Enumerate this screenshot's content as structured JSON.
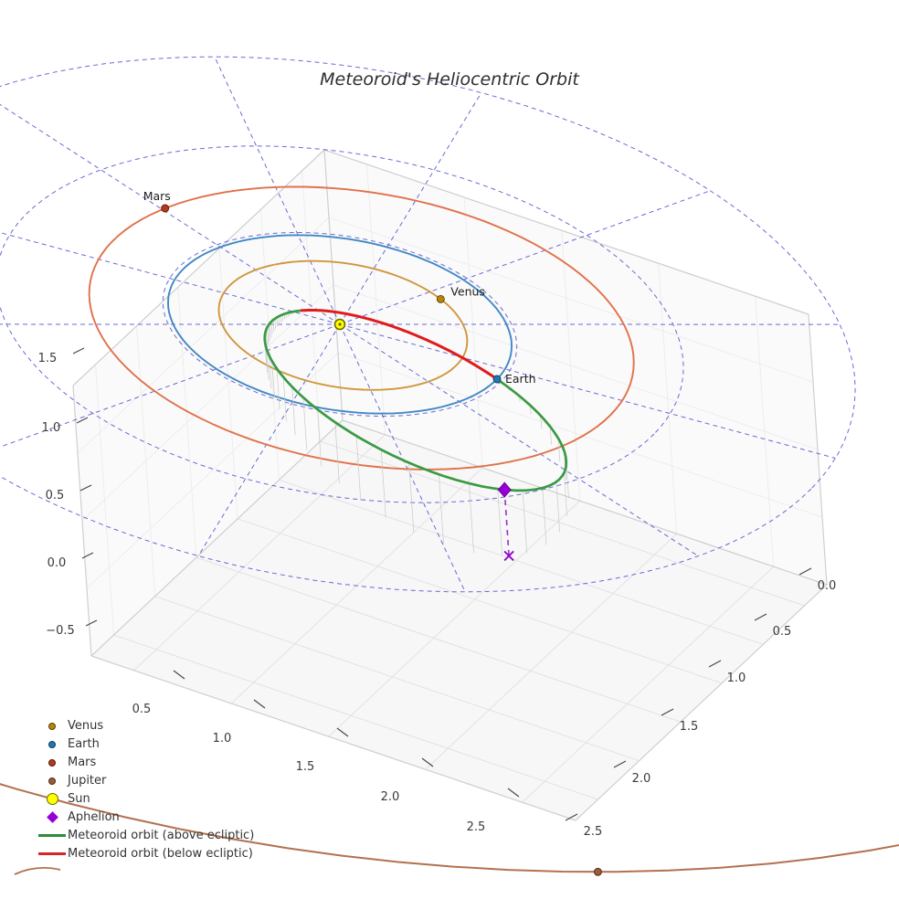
{
  "title": "Meteoroid's Heliocentric Orbit",
  "chart_data": {
    "type": "3d-line",
    "title": "Meteoroid's Heliocentric Orbit",
    "axes": {
      "x_tick_labels": [
        "0.5",
        "1.0",
        "1.5",
        "2.0",
        "2.5"
      ],
      "y_tick_labels": [
        "0.0",
        "0.5",
        "1.0",
        "1.5",
        "2.0",
        "2.5"
      ],
      "z_tick_labels": [
        "1.5",
        "1.0",
        "0.5",
        "0.0",
        "−0.5"
      ],
      "x_range": [
        0.5,
        2.5
      ],
      "y_range": [
        0.0,
        2.5
      ],
      "z_range": [
        -0.5,
        1.5
      ],
      "grid": "gray box panes plus blue dashed polar grid on ecliptic plane",
      "polar_grid": {
        "color": "#5151cc",
        "circle_radii_au": [
          1.03,
          2,
          3
        ],
        "num_spokes": 12
      }
    },
    "bodies": [
      {
        "name": "Venus",
        "orbit_radius_au": 0.723,
        "orbit_color": "#cf973f",
        "marker_color": "#b8860b",
        "marker_edge": "#53400a",
        "position_deg": -62,
        "labeled": true
      },
      {
        "name": "Earth",
        "orbit_radius_au": 1.0,
        "orbit_color": "#4188c6",
        "marker_color": "#2277b4",
        "marker_edge": "#123c5c",
        "position_deg": 0,
        "labeled": true
      },
      {
        "name": "Mars",
        "orbit_radius_au": 1.524,
        "orbit_color": "#e0714a",
        "marker_color": "#b23b1c",
        "marker_edge": "#5a1a0a",
        "position_deg": 200,
        "labeled": true
      },
      {
        "name": "Jupiter",
        "orbit_radius_au": 5.203,
        "orbit_color": "#b2714f",
        "marker_color": "#9a5c3c",
        "marker_edge": "#4e2a14",
        "position_deg": 52,
        "labeled": false
      }
    ],
    "sun": {
      "name": "Sun",
      "color": "#ffff00",
      "edge_color": "#6b6b00"
    },
    "meteoroid_orbit": {
      "semilatus_rectum_au": 0.4,
      "eccentricity": 0.85,
      "perihelion_au": 0.216,
      "aphelion_au": 2.667,
      "inclination_deg": 15,
      "true_anomaly_at_ascending_node_deg": 134.9,
      "ascending_node": "at Earth's position",
      "above_ecliptic_color": "#3a9a43",
      "below_ecliptic_color": "#e01b1c",
      "drop_line_color": "#c9c9c9"
    },
    "aphelion_marker": {
      "name": "Aphelion",
      "color": "#9400d3",
      "projection_marker": "x",
      "drop_line_style": "dashed"
    }
  },
  "legend": {
    "items": [
      {
        "icon": "venus-dot-icon",
        "type": "dot",
        "label": "Venus",
        "color": "#b8860b",
        "edge": "#53400a"
      },
      {
        "icon": "earth-dot-icon",
        "type": "dot",
        "label": "Earth",
        "color": "#2277b4",
        "edge": "#123c5c"
      },
      {
        "icon": "mars-dot-icon",
        "type": "dot",
        "label": "Mars",
        "color": "#b23b1c",
        "edge": "#5a1a0a"
      },
      {
        "icon": "jupiter-dot-icon",
        "type": "dot",
        "label": "Jupiter",
        "color": "#9a5c3c",
        "edge": "#4e2a14"
      },
      {
        "icon": "sun-icon",
        "type": "sun",
        "label": "Sun",
        "color": "#ffff00",
        "edge": "#6b6b00"
      },
      {
        "icon": "aphelion-icon",
        "type": "diamond",
        "label": "Aphelion",
        "color": "#9400d3",
        "edge": "#6a0090"
      },
      {
        "icon": "green-line-icon",
        "type": "line",
        "label": "Meteoroid orbit (above ecliptic)",
        "color": "#2e8b3a",
        "edge": "#2e8b3a"
      },
      {
        "icon": "red-line-icon",
        "type": "line",
        "label": "Meteoroid orbit (below ecliptic)",
        "color": "#d62728",
        "edge": "#d62728"
      }
    ]
  }
}
